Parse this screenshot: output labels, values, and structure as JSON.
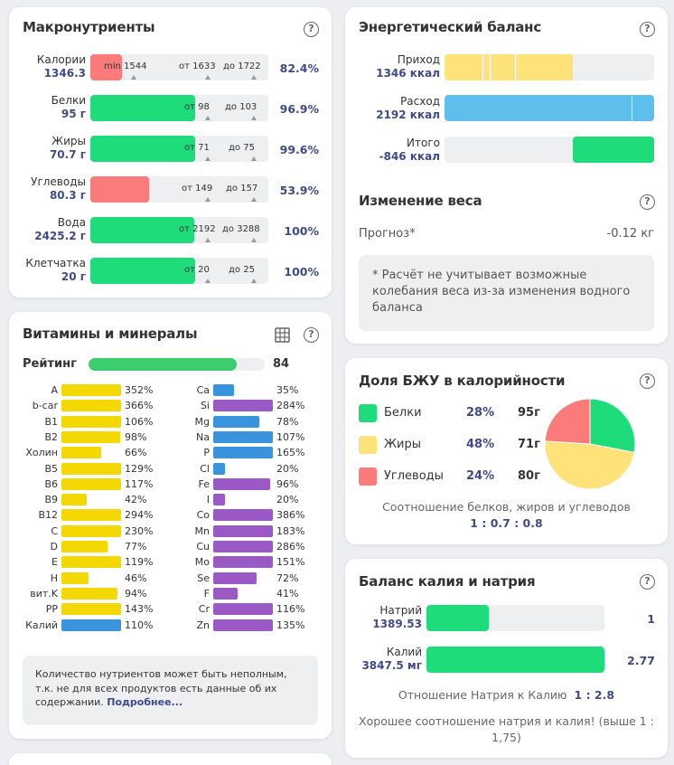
{
  "macro": {
    "title": "Макронутриенты",
    "rows": [
      {
        "label": "Калории",
        "value": "1346.3",
        "pct": "82.4%",
        "marks": [
          "min 1544",
          "от 1633",
          "до 1722"
        ],
        "fill": 0.176
      },
      {
        "label": "Белки",
        "value": "95 г",
        "pct": "96.9%",
        "marks": [
          "от 98",
          "до 103"
        ],
        "fill": 0.59
      },
      {
        "label": "Жиры",
        "value": "70.7 г",
        "pct": "99.6%",
        "marks": [
          "от 71",
          "до 75"
        ],
        "fill": 0.59
      },
      {
        "label": "Углеводы",
        "value": "80.3 г",
        "pct": "53.9%",
        "marks": [
          "от 149",
          "до 157"
        ],
        "fill": 0.33
      },
      {
        "label": "Вода",
        "value": "2425.2 г",
        "pct": "100%",
        "marks": [
          "от 2192",
          "до 3288"
        ],
        "fill": 0.585
      },
      {
        "label": "Клетчатка",
        "value": "20 г",
        "pct": "100%",
        "marks": [
          "от 20",
          "до 25"
        ],
        "fill": 0.59
      }
    ]
  },
  "vitamins": {
    "title": "Витамины и минералы",
    "rating_label": "Рейтинг",
    "rating_value": "84",
    "rating_fill": 0.84,
    "left": [
      {
        "name": "A",
        "pct": "352%",
        "fill": 1.0,
        "color": "y"
      },
      {
        "name": "b-car",
        "pct": "366%",
        "fill": 1.0,
        "color": "y"
      },
      {
        "name": "B1",
        "pct": "106%",
        "fill": 1.0,
        "color": "y"
      },
      {
        "name": "B2",
        "pct": "98%",
        "fill": 0.98,
        "color": "y"
      },
      {
        "name": "Холин",
        "pct": "66%",
        "fill": 0.66,
        "color": "y"
      },
      {
        "name": "B5",
        "pct": "129%",
        "fill": 1.0,
        "color": "y"
      },
      {
        "name": "B6",
        "pct": "117%",
        "fill": 1.0,
        "color": "y"
      },
      {
        "name": "B9",
        "pct": "42%",
        "fill": 0.42,
        "color": "y"
      },
      {
        "name": "B12",
        "pct": "294%",
        "fill": 1.0,
        "color": "y"
      },
      {
        "name": "C",
        "pct": "230%",
        "fill": 1.0,
        "color": "y"
      },
      {
        "name": "D",
        "pct": "77%",
        "fill": 0.77,
        "color": "y"
      },
      {
        "name": "E",
        "pct": "119%",
        "fill": 1.0,
        "color": "y"
      },
      {
        "name": "H",
        "pct": "46%",
        "fill": 0.46,
        "color": "y"
      },
      {
        "name": "вит.K",
        "pct": "94%",
        "fill": 0.94,
        "color": "y"
      },
      {
        "name": "PP",
        "pct": "143%",
        "fill": 1.0,
        "color": "y"
      },
      {
        "name": "Калий",
        "pct": "110%",
        "fill": 1.0,
        "color": "b"
      }
    ],
    "right": [
      {
        "name": "Ca",
        "pct": "35%",
        "fill": 0.35,
        "color": "b"
      },
      {
        "name": "Si",
        "pct": "284%",
        "fill": 1.0,
        "color": "p"
      },
      {
        "name": "Mg",
        "pct": "78%",
        "fill": 0.78,
        "color": "b"
      },
      {
        "name": "Na",
        "pct": "107%",
        "fill": 1.0,
        "color": "b"
      },
      {
        "name": "P",
        "pct": "165%",
        "fill": 1.0,
        "color": "b"
      },
      {
        "name": "Cl",
        "pct": "20%",
        "fill": 0.2,
        "color": "b"
      },
      {
        "name": "Fe",
        "pct": "96%",
        "fill": 0.96,
        "color": "p"
      },
      {
        "name": "I",
        "pct": "20%",
        "fill": 0.2,
        "color": "p"
      },
      {
        "name": "Co",
        "pct": "386%",
        "fill": 1.0,
        "color": "p"
      },
      {
        "name": "Mn",
        "pct": "183%",
        "fill": 1.0,
        "color": "p"
      },
      {
        "name": "Cu",
        "pct": "286%",
        "fill": 1.0,
        "color": "p"
      },
      {
        "name": "Mo",
        "pct": "151%",
        "fill": 1.0,
        "color": "p"
      },
      {
        "name": "Se",
        "pct": "72%",
        "fill": 0.72,
        "color": "p"
      },
      {
        "name": "F",
        "pct": "41%",
        "fill": 0.41,
        "color": "p"
      },
      {
        "name": "Cr",
        "pct": "116%",
        "fill": 1.0,
        "color": "p"
      },
      {
        "name": "Zn",
        "pct": "135%",
        "fill": 1.0,
        "color": "p"
      }
    ],
    "note_text": "Количество нутриентов может быть неполным, т.к. не для всех продуктов есть данные об их содержании.",
    "note_link": "Подробнее..."
  },
  "energy": {
    "title": "Энергетический баланс",
    "rows": [
      {
        "label": "Приход",
        "value": "1346 ккал",
        "fill": 0.614
      },
      {
        "label": "Расход",
        "value": "2192 ккал",
        "fill": 1.0
      },
      {
        "label": "Итого",
        "value": "-846 ккал",
        "fill": 0.386
      }
    ]
  },
  "weight": {
    "title": "Изменение веса",
    "forecast_label": "Прогноз*",
    "forecast_value": "-0.12 кг",
    "note": "* Расчёт не учитывает возможные колебания веса из-за изменения водного баланса"
  },
  "bju": {
    "title": "Доля БЖУ в калорийности",
    "items": [
      {
        "name": "Белки",
        "pct": "28%",
        "grams": "95г",
        "color": "#1fdc7b"
      },
      {
        "name": "Жиры",
        "pct": "48%",
        "grams": "71г",
        "color": "#ffe27a"
      },
      {
        "name": "Углеводы",
        "pct": "24%",
        "grams": "80г",
        "color": "#fb7a7a"
      }
    ],
    "ratio_label": "Соотношение белков, жиров и углеводов",
    "ratio_value": "1 : 0.7 : 0.8"
  },
  "kna": {
    "title": "Баланс калия и натрия",
    "rows": [
      {
        "label": "Натрий",
        "value": "1389.53",
        "ratio": "1",
        "fill": 0.35
      },
      {
        "label": "Калий",
        "value": "3847.5 мг",
        "ratio": "2.77",
        "fill": 1.0
      }
    ],
    "ratio_label": "Отношение Натрия к Калию",
    "ratio_value": "1 : 2.8",
    "verdict": "Хорошее соотношение натрия и калия! (выше 1 : 1,75)"
  },
  "colors": {
    "green": "#1fdc7b",
    "red": "#fb7a7a",
    "yellow": "#ffe27a",
    "blue": "#5ebfec",
    "accent": "#3f4a8a"
  },
  "chart_data": {
    "type": "pie",
    "title": "Доля БЖУ в калорийности",
    "categories": [
      "Белки",
      "Жиры",
      "Углеводы"
    ],
    "values": [
      28,
      48,
      24
    ]
  }
}
